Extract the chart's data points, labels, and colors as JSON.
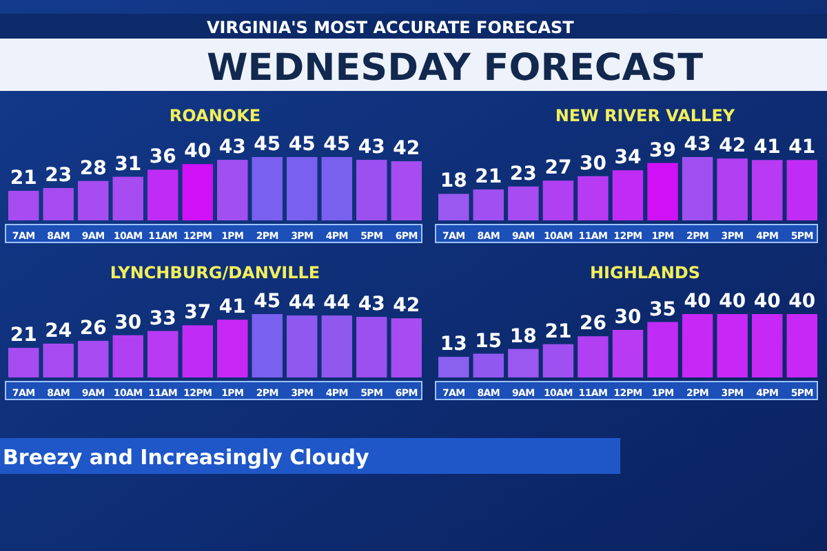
{
  "chart_data": [
    {
      "type": "other",
      "title": "WEDNESDAY FORECAST",
      "subtitle": "VIRGINIA'S MOST ACCURATE FORECAST",
      "annotations": [
        "Breezy and Increasingly Cloudy"
      ]
    },
    {
      "type": "bar",
      "title": "ROANOKE",
      "categories": [
        "7AM",
        "8AM",
        "9AM",
        "10AM",
        "11AM",
        "12PM",
        "1PM",
        "2PM",
        "3PM",
        "4PM",
        "5PM",
        "6PM"
      ],
      "values": [
        21,
        23,
        28,
        31,
        36,
        40,
        43,
        45,
        45,
        45,
        43,
        42
      ],
      "colors": [
        "#a64cf0",
        "#a64cf0",
        "#a64cf0",
        "#a64cf0",
        "#c02cf5",
        "#d010f5",
        "#a050f0",
        "#7a60ee",
        "#7a60ee",
        "#7a60ee",
        "#9c50f0",
        "#a64cf0"
      ],
      "data_labels": true
    },
    {
      "type": "bar",
      "title": "NEW RIVER VALLEY",
      "categories": [
        "7AM",
        "8AM",
        "9AM",
        "10AM",
        "11AM",
        "12PM",
        "1PM",
        "2PM",
        "3PM",
        "4PM",
        "5PM"
      ],
      "values": [
        18,
        21,
        23,
        27,
        30,
        34,
        39,
        43,
        42,
        41,
        41
      ],
      "colors": [
        "#9a58f0",
        "#a050f0",
        "#a64cf0",
        "#b040f2",
        "#b83af3",
        "#c02cf5",
        "#d010f5",
        "#a050f0",
        "#b040f2",
        "#b83af3",
        "#c02cf5"
      ],
      "data_labels": true
    },
    {
      "type": "bar",
      "title": "LYNCHBURG/DANVILLE",
      "categories": [
        "7AM",
        "8AM",
        "9AM",
        "10AM",
        "11AM",
        "12PM",
        "1PM",
        "2PM",
        "3PM",
        "4PM",
        "5PM",
        "6PM"
      ],
      "values": [
        21,
        24,
        26,
        30,
        33,
        37,
        41,
        45,
        44,
        44,
        43,
        42
      ],
      "colors": [
        "#a64cf0",
        "#a64cf0",
        "#a64cf0",
        "#b040f2",
        "#b83af3",
        "#c02cf5",
        "#c828f5",
        "#7a60ee",
        "#9058ef",
        "#9058ef",
        "#9c50f0",
        "#a64cf0"
      ],
      "data_labels": true
    },
    {
      "type": "bar",
      "title": "HIGHLANDS",
      "categories": [
        "7AM",
        "8AM",
        "9AM",
        "10AM",
        "11AM",
        "12PM",
        "1PM",
        "2PM",
        "3PM",
        "4PM",
        "5PM"
      ],
      "values": [
        13,
        15,
        18,
        21,
        26,
        30,
        35,
        40,
        40,
        40,
        40
      ],
      "colors": [
        "#8a60ee",
        "#9058ef",
        "#9a58f0",
        "#a050f0",
        "#b040f2",
        "#b83af3",
        "#c02cf5",
        "#c828f5",
        "#c828f5",
        "#c828f5",
        "#c828f5"
      ],
      "data_labels": true
    }
  ]
}
